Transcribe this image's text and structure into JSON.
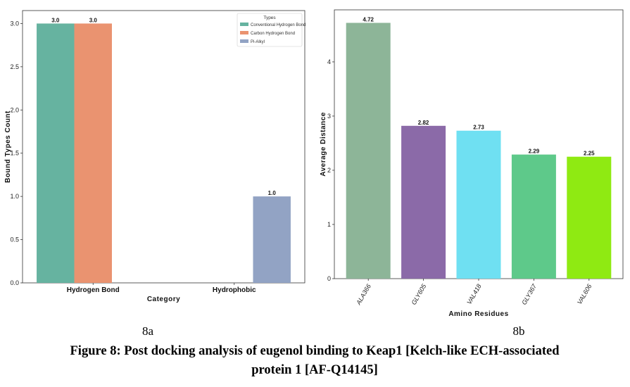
{
  "chart_data": [
    {
      "type": "bar",
      "panel_label": "8a",
      "xlabel": "Category",
      "ylabel": "Bound Types Count",
      "categories": [
        "Hydrogen Bond",
        "Hydrophobic"
      ],
      "ylim": [
        0,
        3.15
      ],
      "yticks": [
        0.0,
        0.5,
        1.0,
        1.5,
        2.0,
        2.5,
        3.0
      ],
      "ytick_labels": [
        "0.0",
        "0.5",
        "1.0",
        "1.5",
        "2.0",
        "2.5",
        "3.0"
      ],
      "legend_title": "Types",
      "legend_position": "top-right",
      "series": [
        {
          "name": "Conventional Hydrogen Bond",
          "color": "#66b3a0",
          "values": [
            3.0,
            0
          ],
          "labels": [
            "3.0",
            ""
          ]
        },
        {
          "name": "Carbon Hydrogen Bond",
          "color": "#ea9370",
          "values": [
            3.0,
            0
          ],
          "labels": [
            "3.0",
            ""
          ]
        },
        {
          "name": "Pi-Alkyl",
          "color": "#92a3c4",
          "values": [
            0,
            1.0
          ],
          "labels": [
            "",
            "1.0"
          ]
        }
      ]
    },
    {
      "type": "bar",
      "panel_label": "8b",
      "xlabel": "Amino Residues",
      "ylabel": "Average Distance",
      "categories": [
        "ALA366",
        "GLY605",
        "VAL418",
        "GLY367",
        "VAL606"
      ],
      "values": [
        4.72,
        2.82,
        2.73,
        2.29,
        2.25
      ],
      "labels": [
        "4.72",
        "2.82",
        "2.73",
        "2.29",
        "2.25"
      ],
      "colors": [
        "#8db598",
        "#8b6aa8",
        "#6fe0f2",
        "#5ec98a",
        "#8fea12"
      ],
      "ylim": [
        0,
        4.96
      ],
      "yticks": [
        0,
        1,
        2,
        3,
        4
      ],
      "ytick_labels": [
        "0",
        "1",
        "2",
        "3",
        "4"
      ]
    }
  ],
  "caption": {
    "line1": "Figure 8: Post docking analysis of eugenol binding to Keap1 [Kelch-like ECH-associated",
    "line2": "protein 1 [AF-Q14145]"
  }
}
